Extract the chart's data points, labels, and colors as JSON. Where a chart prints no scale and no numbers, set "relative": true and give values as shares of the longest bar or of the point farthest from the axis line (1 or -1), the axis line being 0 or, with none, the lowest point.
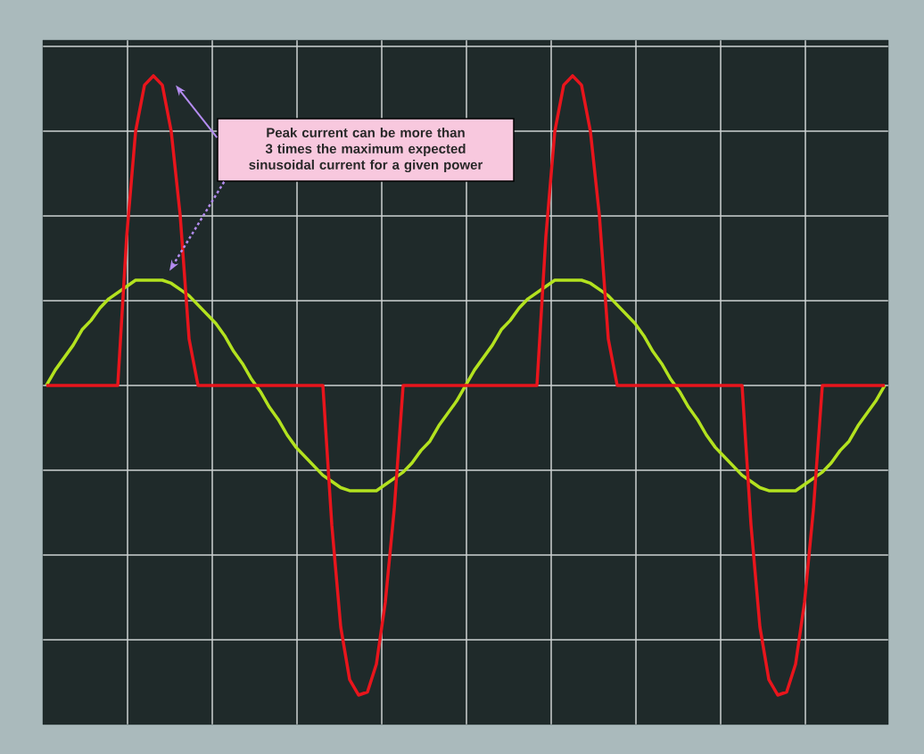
{
  "chart_data": {
    "type": "line",
    "relative": true,
    "grid": true,
    "categories": [
      null,
      null,
      null,
      null,
      null,
      null,
      null,
      null,
      null,
      null,
      null,
      null,
      null,
      null,
      null,
      null,
      null,
      null,
      null,
      null,
      null,
      null,
      null,
      null,
      null,
      null,
      null,
      null,
      null,
      null,
      null,
      null,
      null,
      null,
      null,
      null,
      null,
      null,
      null,
      null,
      null,
      null,
      null,
      null,
      null,
      null,
      null,
      null,
      null,
      null,
      null,
      null,
      null,
      null,
      null,
      null,
      null,
      null,
      null,
      null,
      null,
      null,
      null,
      null,
      null,
      null,
      null,
      null,
      null,
      null,
      null,
      null,
      null,
      null,
      null,
      null,
      null,
      null,
      null,
      null,
      null,
      null,
      null,
      null,
      null,
      null,
      null,
      null,
      null,
      null,
      null,
      null,
      null,
      null,
      null
    ],
    "series": [
      {
        "color": "#b3e21f",
        "values": [
          0,
          0.05,
          0.09,
          0.13,
          0.18,
          0.21,
          0.25,
          0.28,
          0.3,
          0.32,
          0.34,
          0.34,
          0.34,
          0.34,
          0.33,
          0.31,
          0.29,
          0.26,
          0.23,
          0.2,
          0.16,
          0.11,
          0.07,
          0.02,
          -0.02,
          -0.07,
          -0.11,
          -0.16,
          -0.2,
          -0.23,
          -0.26,
          -0.29,
          -0.31,
          -0.33,
          -0.34,
          -0.34,
          -0.34,
          -0.34,
          -0.32,
          -0.3,
          -0.28,
          -0.25,
          -0.21,
          -0.18,
          -0.13,
          -0.09,
          -0.05,
          0,
          0.05,
          0.09,
          0.13,
          0.18,
          0.21,
          0.25,
          0.28,
          0.3,
          0.32,
          0.34,
          0.34,
          0.34,
          0.34,
          0.33,
          0.31,
          0.29,
          0.26,
          0.23,
          0.2,
          0.16,
          0.11,
          0.07,
          0.02,
          -0.02,
          -0.07,
          -0.11,
          -0.16,
          -0.2,
          -0.23,
          -0.26,
          -0.29,
          -0.31,
          -0.33,
          -0.34,
          -0.34,
          -0.34,
          -0.34,
          -0.32,
          -0.3,
          -0.28,
          -0.25,
          -0.21,
          -0.18,
          -0.13,
          -0.09,
          -0.05,
          0
        ]
      },
      {
        "color": "#e8151c",
        "values": [
          0,
          0,
          0,
          0,
          0,
          0,
          0,
          0,
          0,
          0.48,
          0.82,
          0.97,
          1,
          0.97,
          0.82,
          0.55,
          0.15,
          0,
          0,
          0,
          0,
          0,
          0,
          0,
          0,
          0,
          0,
          0,
          0,
          0,
          0,
          0,
          -0.45,
          -0.78,
          -0.95,
          -1,
          -0.99,
          -0.9,
          -0.7,
          -0.4,
          0,
          0,
          0,
          0,
          0,
          0,
          0,
          0,
          0,
          0,
          0,
          0,
          0,
          0,
          0,
          0,
          0.48,
          0.82,
          0.97,
          1,
          0.97,
          0.82,
          0.55,
          0.15,
          0,
          0,
          0,
          0,
          0,
          0,
          0,
          0,
          0,
          0,
          0,
          0,
          0,
          0,
          0,
          -0.45,
          -0.78,
          -0.95,
          -1,
          -0.99,
          -0.9,
          -0.7,
          -0.4,
          0,
          0,
          0,
          0,
          0,
          0,
          0,
          0
        ]
      }
    ],
    "annotations": [
      "Peak current can be more than 3 times the maximum expected sinusoidal current for a given power"
    ]
  }
}
